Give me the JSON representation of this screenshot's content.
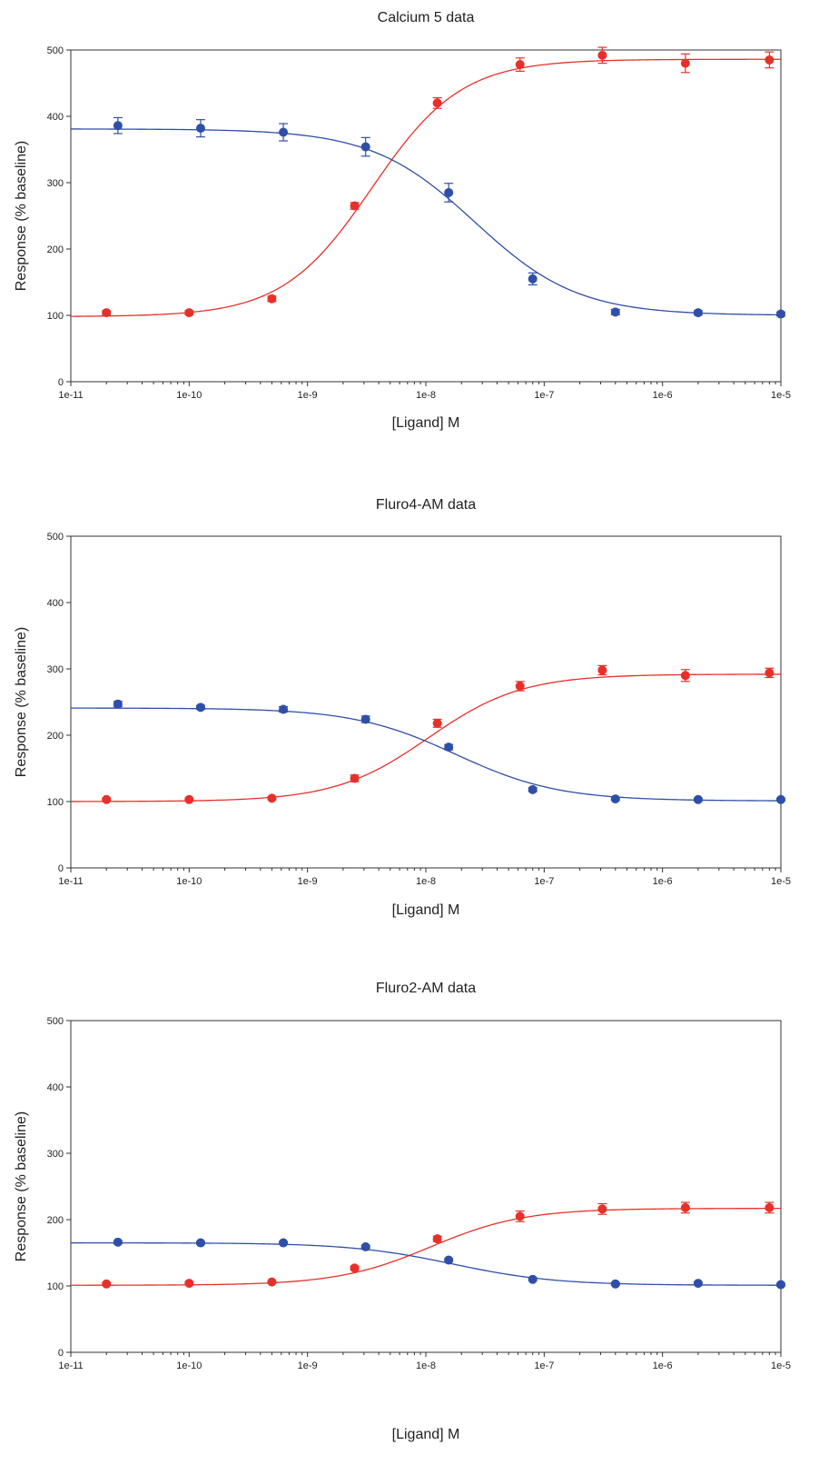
{
  "chart_data": [
    {
      "type": "scatter",
      "title": "Calcium 5 data",
      "xlabel": "[Ligand] M",
      "ylabel": "Response (% baseline)",
      "x_scale": "log",
      "xlim": [
        1e-11,
        1e-05
      ],
      "ylim": [
        0,
        500
      ],
      "x_ticks": [
        "1e-11",
        "1e-10",
        "1e-9",
        "1e-8",
        "1e-7",
        "1e-6",
        "1e-5"
      ],
      "y_ticks": [
        "0",
        "100",
        "200",
        "300",
        "400",
        "500"
      ],
      "grid": false,
      "series": [
        {
          "color": "#e8302a",
          "x": [
            2e-11,
            1e-10,
            5e-10,
            2.5e-09,
            1.25e-08,
            6.25e-08,
            3.1e-07,
            1.56e-06,
            8e-06
          ],
          "y": [
            104,
            104,
            125,
            265,
            420,
            478,
            492,
            480,
            485
          ],
          "err": [
            3,
            3,
            4,
            5,
            8,
            10,
            12,
            14,
            12
          ],
          "fit": {
            "bottom": 98,
            "top": 486,
            "ec50": 3.5e-09,
            "hill": 1.15
          }
        },
        {
          "color": "#2f4fa7",
          "x": [
            2.5e-11,
            1.25e-10,
            6.25e-10,
            3.1e-09,
            1.56e-08,
            8e-08,
            4e-07,
            2e-06,
            1e-05
          ],
          "y": [
            386,
            382,
            376,
            354,
            285,
            155,
            105,
            104,
            102
          ],
          "err": [
            12,
            13,
            13,
            14,
            14,
            9,
            4,
            3,
            3
          ],
          "fit": {
            "bottom": 100,
            "top": 381,
            "ec50": 2.6e-08,
            "hill": 1.0
          }
        }
      ]
    },
    {
      "type": "scatter",
      "title": "Fluro4-AM data",
      "xlabel": "[Ligand] M",
      "ylabel": "Response (% baseline)",
      "x_scale": "log",
      "xlim": [
        1e-11,
        1e-05
      ],
      "ylim": [
        0,
        500
      ],
      "x_ticks": [
        "1e-11",
        "1e-10",
        "1e-9",
        "1e-8",
        "1e-7",
        "1e-6",
        "1e-5"
      ],
      "y_ticks": [
        "0",
        "100",
        "200",
        "300",
        "400",
        "500"
      ],
      "grid": false,
      "series": [
        {
          "color": "#e8302a",
          "x": [
            2e-11,
            1e-10,
            5e-10,
            2.5e-09,
            1.25e-08,
            6.25e-08,
            3.1e-07,
            1.56e-06,
            8e-06
          ],
          "y": [
            103,
            103,
            105,
            135,
            218,
            274,
            298,
            290,
            294
          ],
          "err": [
            2,
            2,
            2,
            5,
            6,
            7,
            7,
            9,
            7
          ],
          "fit": {
            "bottom": 100,
            "top": 292,
            "ec50": 1.05e-08,
            "hill": 1.1
          }
        },
        {
          "color": "#2f4fa7",
          "x": [
            2.5e-11,
            1.25e-10,
            6.25e-10,
            3.1e-09,
            1.56e-08,
            8e-08,
            4e-07,
            2e-06,
            1e-05
          ],
          "y": [
            247,
            242,
            239,
            224,
            182,
            118,
            104,
            103,
            103
          ],
          "err": [
            4,
            3,
            4,
            5,
            4,
            3,
            2,
            2,
            2
          ],
          "fit": {
            "bottom": 101,
            "top": 241,
            "ec50": 1.8e-08,
            "hill": 1.0
          }
        }
      ]
    },
    {
      "type": "scatter",
      "title": "Fluro2-AM data",
      "xlabel": "[Ligand] M",
      "ylabel": "Response (% baseline)",
      "x_scale": "log",
      "xlim": [
        1e-11,
        1e-05
      ],
      "ylim": [
        0,
        500
      ],
      "x_ticks": [
        "1e-11",
        "1e-10",
        "1e-9",
        "1e-8",
        "1e-7",
        "1e-6",
        "1e-5"
      ],
      "y_ticks": [
        "0",
        "100",
        "200",
        "300",
        "400",
        "500"
      ],
      "grid": false,
      "series": [
        {
          "color": "#e8302a",
          "x": [
            2e-11,
            1e-10,
            5e-10,
            2.5e-09,
            1.25e-08,
            6.25e-08,
            3.1e-07,
            1.56e-06,
            8e-06
          ],
          "y": [
            103,
            104,
            106,
            127,
            171,
            205,
            216,
            218,
            218
          ],
          "err": [
            2,
            2,
            2,
            3,
            4,
            8,
            8,
            8,
            8
          ],
          "fit": {
            "bottom": 101,
            "top": 217,
            "ec50": 1.1e-08,
            "hill": 1.1
          }
        },
        {
          "color": "#2f4fa7",
          "x": [
            2.5e-11,
            1.25e-10,
            6.25e-10,
            3.1e-09,
            1.56e-08,
            8e-08,
            4e-07,
            2e-06,
            1e-05
          ],
          "y": [
            166,
            165,
            165,
            159,
            139,
            110,
            103,
            104,
            102
          ],
          "err": [
            2,
            2,
            2,
            2,
            2,
            2,
            2,
            2,
            2
          ],
          "fit": {
            "bottom": 101,
            "top": 165,
            "ec50": 1.7e-08,
            "hill": 1.0
          }
        }
      ]
    }
  ]
}
